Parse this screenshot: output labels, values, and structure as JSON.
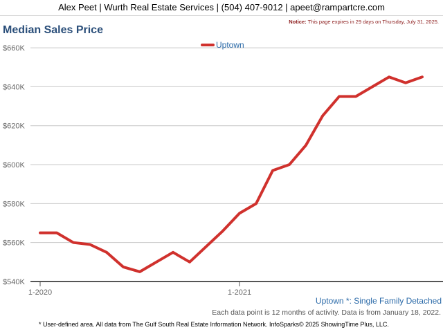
{
  "header": {
    "contact": "Alex Peet | Wurth Real Estate Services | (504) 407-9012 | apeet@rampartcre.com",
    "notice_label": "Notice:",
    "notice_text": "This page expires in 29 days on Thursday, July 31, 2025."
  },
  "page_title": "Median Sales Price",
  "chart_data": {
    "type": "line",
    "title": "Median Sales Price",
    "xlabel": "",
    "ylabel": "",
    "x": [
      "2020-01",
      "2020-02",
      "2020-03",
      "2020-04",
      "2020-05",
      "2020-06",
      "2020-07",
      "2020-08",
      "2020-09",
      "2020-10",
      "2020-11",
      "2020-12",
      "2021-01",
      "2021-02",
      "2021-03",
      "2021-04",
      "2021-05",
      "2021-06",
      "2021-07",
      "2021-08",
      "2021-09",
      "2021-10",
      "2021-11",
      "2021-12"
    ],
    "x_tick_labels": [
      "1-2020",
      "1-2021"
    ],
    "x_tick_dates": [
      "2020-01",
      "2021-01"
    ],
    "series": [
      {
        "name": "Uptown",
        "color": "#d0312d",
        "values": [
          565000,
          565000,
          560000,
          559000,
          555000,
          547500,
          545000,
          550000,
          555000,
          550000,
          558000,
          566000,
          575000,
          580000,
          597000,
          600000,
          610000,
          625000,
          635000,
          635000,
          640000,
          645000,
          642000,
          645000
        ]
      }
    ],
    "ylim": [
      540000,
      665000
    ],
    "y_ticks": [
      540000,
      560000,
      580000,
      600000,
      620000,
      640000,
      660000
    ],
    "y_tick_labels": [
      "$540K",
      "$560K",
      "$580K",
      "$600K",
      "$620K",
      "$640K",
      "$660K"
    ],
    "grid": true,
    "legend_placement": "top-center"
  },
  "area_label": "Uptown *: Single Family Detached",
  "data_note": "Each data point is 12 months of activity. Data is from January 18, 2022.",
  "footer": "* User-defined area. All data from The Gulf South Real Estate Information Network. InfoSparks© 2025 ShowingTime Plus, LLC."
}
